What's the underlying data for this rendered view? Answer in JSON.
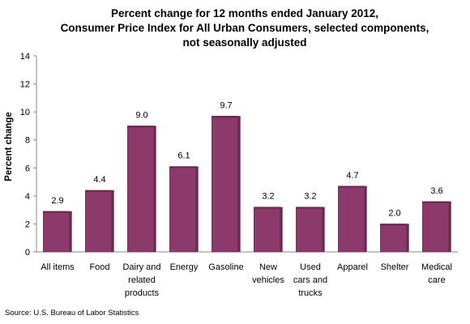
{
  "chart_data": {
    "type": "bar",
    "title_lines": [
      "Percent change for 12 months ended January 2012,",
      "Consumer Price Index for All Urban Consumers, selected components,",
      "not seasonally adjusted"
    ],
    "ylabel": "Percent change",
    "xlabel": "",
    "ylim": [
      0,
      14
    ],
    "yticks": [
      0,
      2,
      4,
      6,
      8,
      10,
      12,
      14
    ],
    "grid": false,
    "legend": "none",
    "categories": [
      [
        "All items"
      ],
      [
        "Food"
      ],
      [
        "Dairy and",
        "related",
        "products"
      ],
      [
        "Energy"
      ],
      [
        "Gasoline"
      ],
      [
        "New",
        "vehicles"
      ],
      [
        "Used",
        "cars and",
        "trucks"
      ],
      [
        "Apparel"
      ],
      [
        "Shelter"
      ],
      [
        "Medical",
        "care"
      ]
    ],
    "values": [
      2.9,
      4.4,
      9.0,
      6.1,
      9.7,
      3.2,
      3.2,
      4.7,
      2.0,
      3.6
    ],
    "value_labels": [
      "2.9",
      "4.4",
      "9.0",
      "6.1",
      "9.7",
      "3.2",
      "3.2",
      "4.7",
      "2.0",
      "3.6"
    ],
    "bar_color": "#8b3a6b",
    "bar_color_dark": "#6a2a50"
  },
  "source": "Source: U.S. Bureau of Labor Statistics"
}
